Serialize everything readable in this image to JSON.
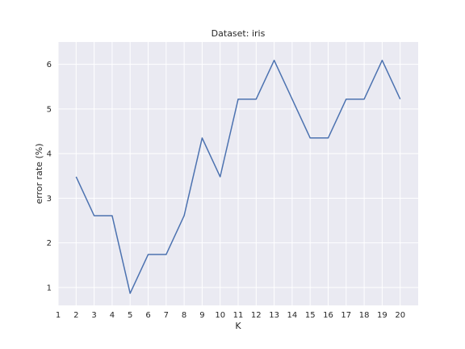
{
  "chart_data": {
    "type": "line",
    "title": "Dataset: iris",
    "xlabel": "K",
    "ylabel": "error rate (%)",
    "xlim": [
      1,
      21
    ],
    "ylim": [
      0.6,
      6.5
    ],
    "xticks": [
      1,
      2,
      3,
      4,
      5,
      6,
      7,
      8,
      9,
      10,
      11,
      12,
      13,
      14,
      15,
      16,
      17,
      18,
      19,
      20
    ],
    "yticks": [
      1,
      2,
      3,
      4,
      5,
      6
    ],
    "grid": true,
    "series": [
      {
        "x": [
          2,
          3,
          4,
          5,
          6,
          7,
          8,
          9,
          10,
          11,
          12,
          13,
          14,
          15,
          16,
          17,
          18,
          19,
          20
        ],
        "y": [
          3.48,
          2.61,
          2.61,
          0.87,
          1.74,
          1.74,
          2.61,
          4.35,
          3.48,
          5.22,
          5.22,
          6.09,
          5.22,
          4.35,
          4.35,
          5.22,
          5.22,
          6.09,
          5.22
        ],
        "color": "#4c72b0"
      }
    ]
  },
  "colors": {
    "plot_background": "#eaeaf2",
    "grid": "#ffffff",
    "line": "#4c72b0"
  }
}
